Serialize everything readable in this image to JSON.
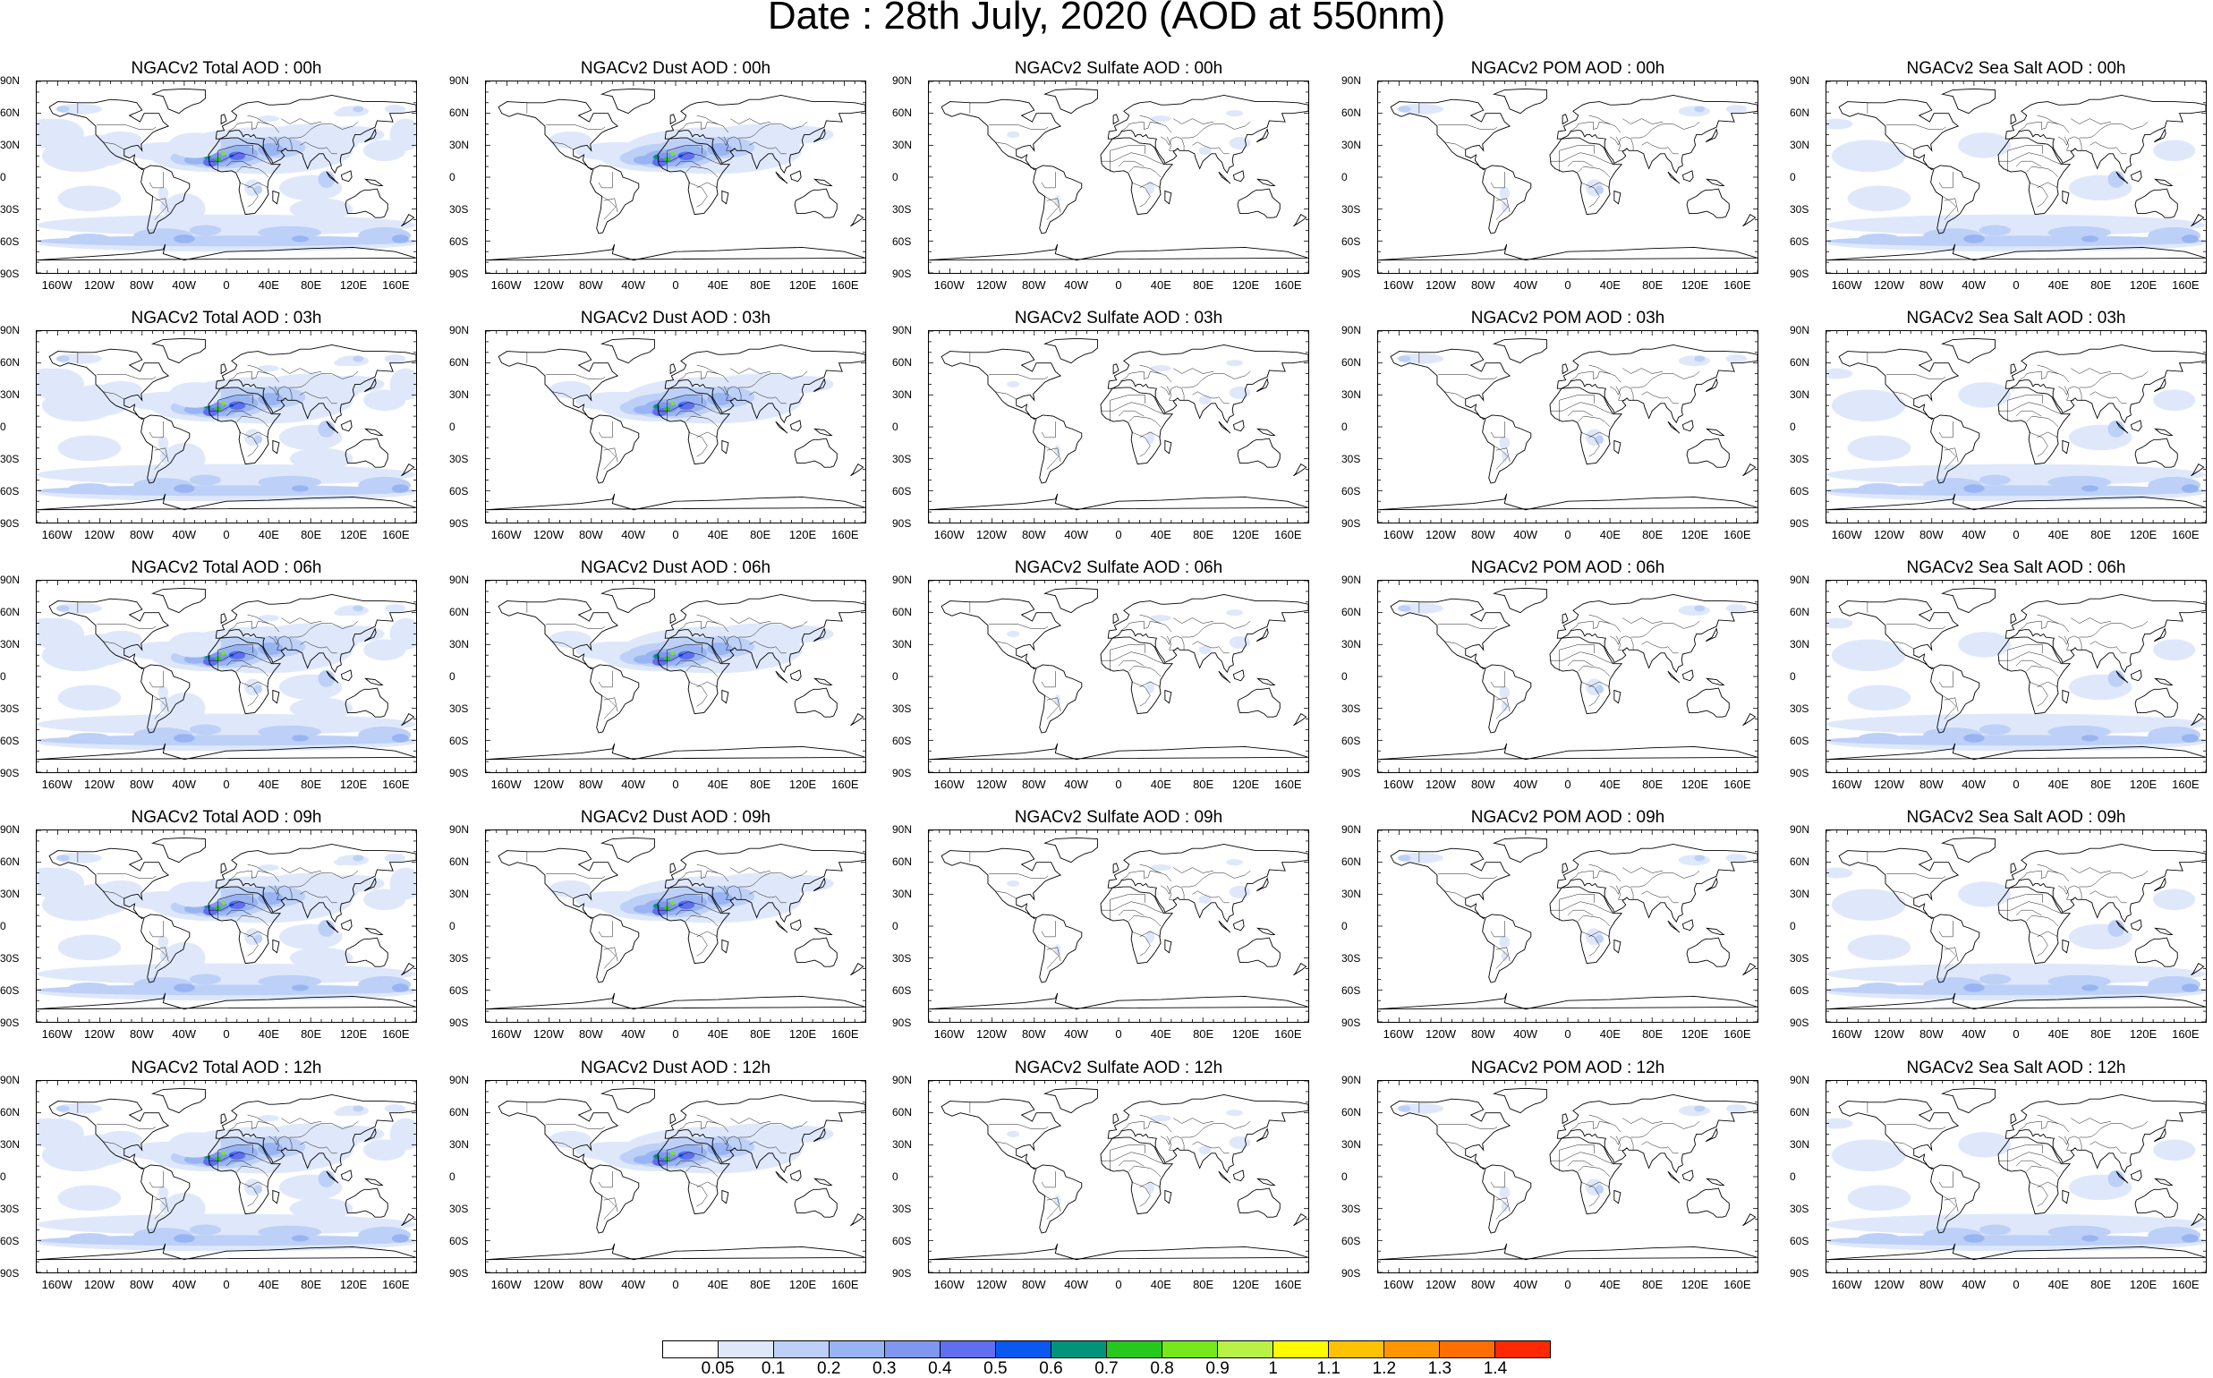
{
  "title": "Date : 28th July, 2020 (AOD at 550nm)",
  "y_axis_labels": [
    "90N",
    "60N",
    "30N",
    "0",
    "30S",
    "60S",
    "90S"
  ],
  "x_axis_labels": [
    "160W",
    "120W",
    "80W",
    "40W",
    "0",
    "40E",
    "80E",
    "120E",
    "160E"
  ],
  "panels": [
    {
      "title": "NGACv2 Total AOD : 00h",
      "species": "total"
    },
    {
      "title": "NGACv2 Dust AOD : 00h",
      "species": "dust"
    },
    {
      "title": "NGACv2 Sulfate AOD : 00h",
      "species": "sulfate"
    },
    {
      "title": "NGACv2 POM AOD : 00h",
      "species": "pom"
    },
    {
      "title": "NGACv2 Sea Salt AOD : 00h",
      "species": "seasalt"
    },
    {
      "title": "NGACv2 Total AOD : 03h",
      "species": "total"
    },
    {
      "title": "NGACv2 Dust AOD : 03h",
      "species": "dust"
    },
    {
      "title": "NGACv2 Sulfate AOD : 03h",
      "species": "sulfate"
    },
    {
      "title": "NGACv2 POM AOD : 03h",
      "species": "pom"
    },
    {
      "title": "NGACv2 Sea Salt AOD : 03h",
      "species": "seasalt"
    },
    {
      "title": "NGACv2 Total AOD : 06h",
      "species": "total"
    },
    {
      "title": "NGACv2 Dust AOD : 06h",
      "species": "dust"
    },
    {
      "title": "NGACv2 Sulfate AOD : 06h",
      "species": "sulfate"
    },
    {
      "title": "NGACv2 POM AOD : 06h",
      "species": "pom"
    },
    {
      "title": "NGACv2 Sea Salt AOD : 06h",
      "species": "seasalt"
    },
    {
      "title": "NGACv2 Total AOD : 09h",
      "species": "total"
    },
    {
      "title": "NGACv2 Dust AOD : 09h",
      "species": "dust"
    },
    {
      "title": "NGACv2 Sulfate AOD : 09h",
      "species": "sulfate"
    },
    {
      "title": "NGACv2 POM AOD : 09h",
      "species": "pom"
    },
    {
      "title": "NGACv2 Sea Salt  AOD : 09h",
      "species": "seasalt"
    },
    {
      "title": "NGACv2 Total AOD : 12h",
      "species": "total"
    },
    {
      "title": "NGACv2 Dust AOD : 12h",
      "species": "dust"
    },
    {
      "title": "NGACv2 Sulfate AOD : 12h",
      "species": "sulfate"
    },
    {
      "title": "NGACv2 POM  AOD : 12h",
      "species": "pom"
    },
    {
      "title": "NGACv2 Sea Salt AOD : 12h",
      "species": "seasalt"
    }
  ],
  "colorbar": {
    "labels": [
      "0.05",
      "0.1",
      "0.2",
      "0.3",
      "0.4",
      "0.5",
      "0.6",
      "0.7",
      "0.8",
      "0.9",
      "1",
      "1.1",
      "1.2",
      "1.3",
      "1.4"
    ],
    "colors": [
      "#ffffff",
      "#dfe8fb",
      "#bdd0f7",
      "#98b4f2",
      "#7f97ef",
      "#5f6ff0",
      "#0a58f0",
      "#00947a",
      "#27c81e",
      "#78e81a",
      "#b8f247",
      "#fffb00",
      "#ffc200",
      "#ff9500",
      "#ff6e00",
      "#ff2800"
    ]
  }
}
